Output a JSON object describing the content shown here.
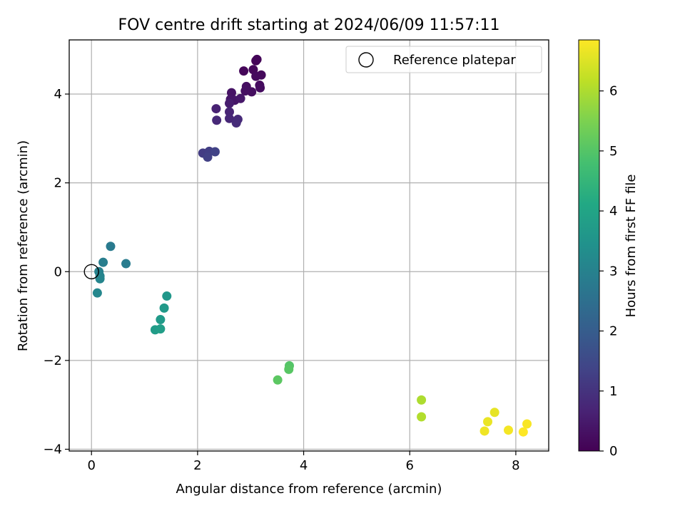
{
  "chart_data": {
    "type": "scatter",
    "title": "FOV centre drift starting at 2024/06/09 11:57:11",
    "xlabel": "Angular distance from reference (arcmin)",
    "ylabel": "Rotation from reference (arcmin)",
    "xlim": [
      -0.42,
      8.62
    ],
    "ylim": [
      -4.04,
      5.22
    ],
    "xticks": [
      0,
      2,
      4,
      6,
      8
    ],
    "yticks": [
      -4,
      -2,
      0,
      2,
      4
    ],
    "xtick_labels": [
      "0",
      "2",
      "4",
      "6",
      "8"
    ],
    "ytick_labels": [
      "−4",
      "−2",
      "0",
      "2",
      "4"
    ],
    "grid": true,
    "colorscale": "viridis",
    "colorbar": {
      "label": "Hours from first FF file",
      "range": [
        0,
        6.85
      ],
      "ticks": [
        0,
        1,
        2,
        3,
        4,
        5,
        6
      ],
      "tick_labels": [
        "0",
        "1",
        "2",
        "3",
        "4",
        "5",
        "6"
      ]
    },
    "legend": {
      "position": "top-right",
      "entries": [
        "Reference platepar"
      ]
    },
    "reference_point": {
      "x": 0,
      "y": 0
    },
    "points": [
      {
        "x": 3.1,
        "y": 4.75,
        "h": 0.05
      },
      {
        "x": 3.12,
        "y": 4.78,
        "h": 0.08
      },
      {
        "x": 2.87,
        "y": 4.52,
        "h": 0.1
      },
      {
        "x": 3.05,
        "y": 4.55,
        "h": 0.12
      },
      {
        "x": 3.2,
        "y": 4.43,
        "h": 0.15
      },
      {
        "x": 3.1,
        "y": 4.4,
        "h": 0.18
      },
      {
        "x": 3.17,
        "y": 4.2,
        "h": 0.2
      },
      {
        "x": 3.18,
        "y": 4.14,
        "h": 0.22
      },
      {
        "x": 3.02,
        "y": 4.05,
        "h": 0.25
      },
      {
        "x": 2.92,
        "y": 4.17,
        "h": 0.28
      },
      {
        "x": 2.9,
        "y": 4.07,
        "h": 0.3
      },
      {
        "x": 2.64,
        "y": 4.03,
        "h": 0.35
      },
      {
        "x": 2.62,
        "y": 3.88,
        "h": 0.4
      },
      {
        "x": 2.7,
        "y": 3.86,
        "h": 0.42
      },
      {
        "x": 2.81,
        "y": 3.9,
        "h": 0.45
      },
      {
        "x": 2.6,
        "y": 3.79,
        "h": 0.55
      },
      {
        "x": 2.35,
        "y": 3.67,
        "h": 0.65
      },
      {
        "x": 2.6,
        "y": 3.6,
        "h": 0.7
      },
      {
        "x": 2.6,
        "y": 3.45,
        "h": 0.75
      },
      {
        "x": 2.36,
        "y": 3.41,
        "h": 0.8
      },
      {
        "x": 2.76,
        "y": 3.43,
        "h": 0.82
      },
      {
        "x": 2.73,
        "y": 3.35,
        "h": 0.85
      },
      {
        "x": 2.1,
        "y": 2.67,
        "h": 1.2
      },
      {
        "x": 2.22,
        "y": 2.71,
        "h": 1.25
      },
      {
        "x": 2.19,
        "y": 2.58,
        "h": 1.3
      },
      {
        "x": 2.33,
        "y": 2.7,
        "h": 1.35
      },
      {
        "x": 0.36,
        "y": 0.57,
        "h": 2.8
      },
      {
        "x": 0.65,
        "y": 0.18,
        "h": 2.85
      },
      {
        "x": 0.22,
        "y": 0.21,
        "h": 2.9
      },
      {
        "x": 0.14,
        "y": 0.0,
        "h": 3.0
      },
      {
        "x": 0.16,
        "y": -0.1,
        "h": 3.05
      },
      {
        "x": 0.16,
        "y": -0.16,
        "h": 3.1
      },
      {
        "x": 0.11,
        "y": -0.48,
        "h": 3.15
      },
      {
        "x": 1.42,
        "y": -0.55,
        "h": 3.6
      },
      {
        "x": 1.37,
        "y": -0.82,
        "h": 3.65
      },
      {
        "x": 1.3,
        "y": -1.08,
        "h": 3.7
      },
      {
        "x": 1.2,
        "y": -1.31,
        "h": 3.75
      },
      {
        "x": 1.3,
        "y": -1.29,
        "h": 3.8
      },
      {
        "x": 3.73,
        "y": -2.12,
        "h": 5.0
      },
      {
        "x": 3.72,
        "y": -2.2,
        "h": 5.05
      },
      {
        "x": 3.51,
        "y": -2.44,
        "h": 5.1
      },
      {
        "x": 6.22,
        "y": -2.89,
        "h": 6.0
      },
      {
        "x": 6.22,
        "y": -3.27,
        "h": 6.05
      },
      {
        "x": 7.6,
        "y": -3.17,
        "h": 6.6
      },
      {
        "x": 7.47,
        "y": -3.38,
        "h": 6.65
      },
      {
        "x": 7.41,
        "y": -3.59,
        "h": 6.7
      },
      {
        "x": 7.86,
        "y": -3.57,
        "h": 6.75
      },
      {
        "x": 8.21,
        "y": -3.43,
        "h": 6.8
      },
      {
        "x": 8.14,
        "y": -3.61,
        "h": 6.85
      }
    ]
  }
}
